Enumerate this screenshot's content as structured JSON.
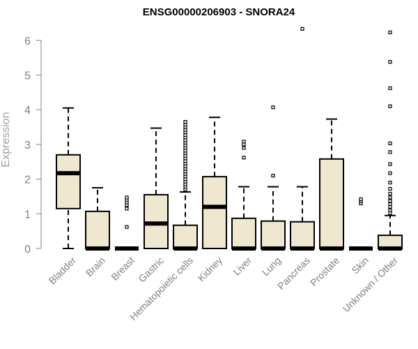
{
  "chart_data": {
    "type": "box",
    "title": "ENSG00000206903 - SNORA24",
    "xlabel": "",
    "ylabel": "Expression",
    "ylim": [
      0,
      6.3
    ],
    "yticks": [
      "0",
      "1",
      "2",
      "3",
      "4",
      "5",
      "6"
    ],
    "box_color": "#efe7cf",
    "categories": [
      "Bladder",
      "Brain",
      "Breast",
      "Gastric",
      "Hematopoietic cells",
      "Kidney",
      "Liver",
      "Lung",
      "Pancreas",
      "Prostate",
      "Skin",
      "Unknown / Other"
    ],
    "series": [
      {
        "category": "Bladder",
        "whisker_low": 0,
        "q1": 1.15,
        "median": 2.17,
        "q3": 2.7,
        "whisker_high": 4.05,
        "outliers": []
      },
      {
        "category": "Brain",
        "whisker_low": 0,
        "q1": 0,
        "median": 0,
        "q3": 1.07,
        "whisker_high": 1.75,
        "outliers": []
      },
      {
        "category": "Breast",
        "whisker_low": 0,
        "q1": 0,
        "median": 0,
        "q3": 0,
        "whisker_high": 0,
        "outliers": [
          0.62,
          1.15,
          1.25,
          1.33,
          1.4,
          1.47
        ]
      },
      {
        "category": "Gastric",
        "whisker_low": 0,
        "q1": 0,
        "median": 0.72,
        "q3": 1.55,
        "whisker_high": 3.47,
        "outliers": []
      },
      {
        "category": "Hematopoietic cells",
        "whisker_low": 0,
        "q1": 0,
        "median": 0,
        "q3": 0.67,
        "whisker_high": 1.63,
        "outliers": [
          1.7,
          1.78,
          1.85,
          1.93,
          2.0,
          2.08,
          2.15,
          2.22,
          2.3,
          2.37,
          2.45,
          2.52,
          2.6,
          2.67,
          2.75,
          2.82,
          2.9,
          2.97,
          3.05,
          3.12,
          3.2,
          3.27,
          3.35,
          3.42,
          3.5,
          3.57,
          3.65
        ]
      },
      {
        "category": "Kidney",
        "whisker_low": 0,
        "q1": 0,
        "median": 1.2,
        "q3": 2.07,
        "whisker_high": 3.78,
        "outliers": []
      },
      {
        "category": "Liver",
        "whisker_low": 0,
        "q1": 0,
        "median": 0,
        "q3": 0.87,
        "whisker_high": 1.78,
        "outliers": [
          2.62,
          2.9,
          3.0,
          3.08
        ]
      },
      {
        "category": "Lung",
        "whisker_low": 0,
        "q1": 0,
        "median": 0,
        "q3": 0.79,
        "whisker_high": 1.78,
        "outliers": [
          2.1,
          4.07
        ]
      },
      {
        "category": "Pancreas",
        "whisker_low": 0,
        "q1": 0,
        "median": 0,
        "q3": 0.77,
        "whisker_high": 1.78,
        "outliers": [
          6.33
        ]
      },
      {
        "category": "Prostate",
        "whisker_low": 0,
        "q1": 0,
        "median": 0,
        "q3": 2.58,
        "whisker_high": 3.73,
        "outliers": []
      },
      {
        "category": "Skin",
        "whisker_low": 0,
        "q1": 0,
        "median": 0,
        "q3": 0,
        "whisker_high": 0,
        "outliers": [
          1.3,
          1.37,
          1.42
        ]
      },
      {
        "category": "Unknown / Other",
        "whisker_low": 0,
        "q1": 0,
        "median": 0,
        "q3": 0.38,
        "whisker_high": 0.95,
        "outliers": [
          1.02,
          1.1,
          1.2,
          1.28,
          1.37,
          1.47,
          1.58,
          1.72,
          1.9,
          2.17,
          2.43,
          2.78,
          3.03,
          4.1,
          4.62,
          5.38,
          6.23
        ]
      }
    ]
  }
}
